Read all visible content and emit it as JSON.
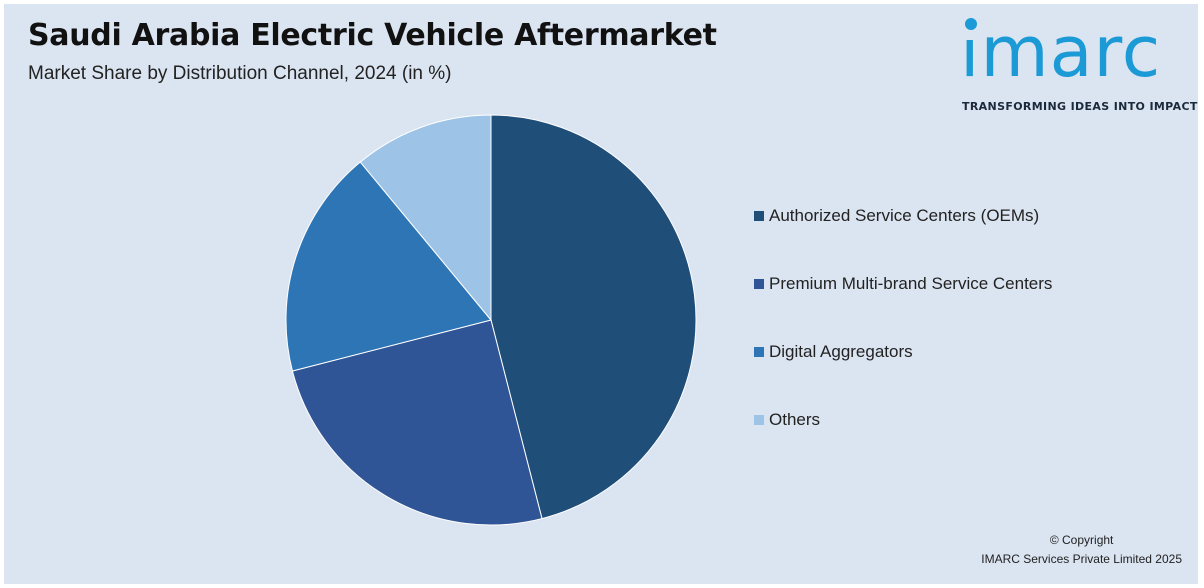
{
  "header": {
    "title": "Saudi Arabia Electric Vehicle Aftermarket",
    "subtitle": "Market Share by Distribution Channel, 2024 (in %)"
  },
  "logo": {
    "wordmark": "imarc",
    "tagline": "TRANSFORMING IDEAS INTO IMPACT",
    "color": "#1b9ad6"
  },
  "chart_data": {
    "type": "pie",
    "title": "Saudi Arabia Electric Vehicle Aftermarket",
    "subtitle": "Market Share by Distribution Channel, 2024 (in %)",
    "categories": [
      "Authorized Service Centers (OEMs)",
      "Premium Multi-brand Service Centers",
      "Digital Aggregators",
      "Others"
    ],
    "values": [
      46,
      25,
      18,
      11
    ],
    "colors": [
      "#1f4e79",
      "#2f5597",
      "#2e75b6",
      "#9dc3e6"
    ],
    "start_angle": "12 o'clock",
    "direction": "clockwise",
    "legend_position": "right"
  },
  "footer": {
    "copyright_line1": "© Copyright",
    "copyright_line2": "IMARC Services Private Limited 2025"
  }
}
